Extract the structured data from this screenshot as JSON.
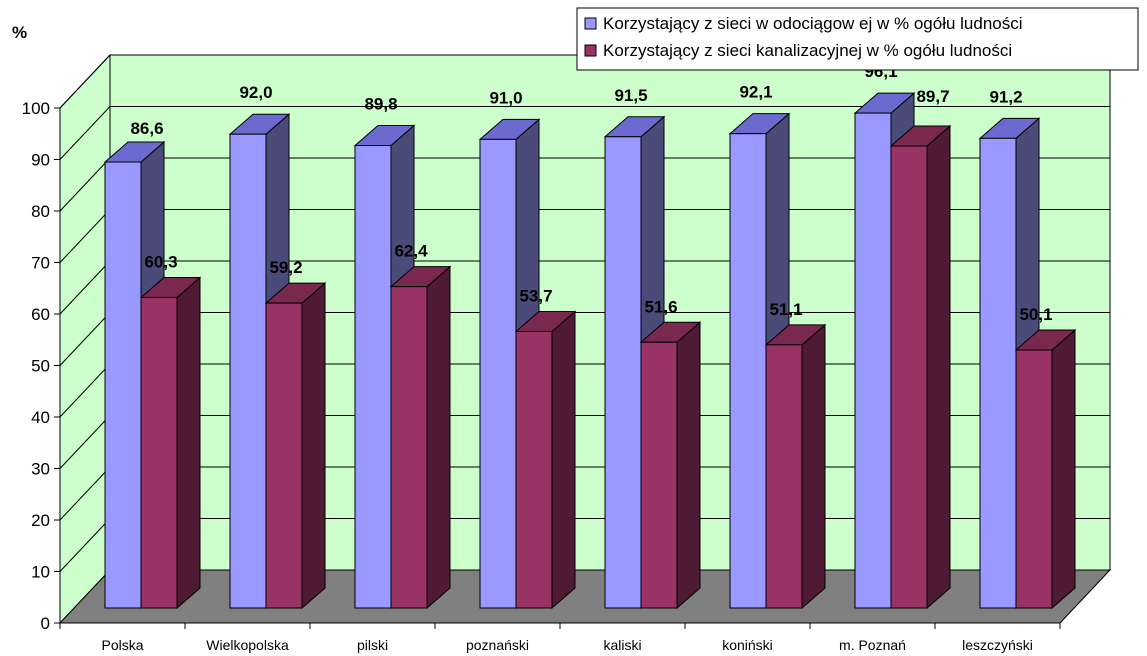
{
  "chart_data": {
    "type": "bar",
    "ylabel": "%",
    "ylim": [
      0,
      100
    ],
    "yticks": [
      0,
      10,
      20,
      30,
      40,
      50,
      60,
      70,
      80,
      90,
      100
    ],
    "categories": [
      "Polska",
      "Wielkopolska",
      "pilski",
      "poznański",
      "kaliski",
      "koniński",
      "m. Poznań",
      "leszczyński"
    ],
    "series": [
      {
        "name": "Korzystający z sieci w odociągow ej w % ogółu ludności",
        "values": [
          86.6,
          92.0,
          89.8,
          91.0,
          91.5,
          92.1,
          96.1,
          91.2
        ],
        "labels": [
          "86,6",
          "92,0",
          "89,8",
          "91,0",
          "91,5",
          "92,1",
          "96,1",
          "91,2"
        ],
        "color_front": "#9999ff",
        "color_top": "#6b6bcf",
        "color_side": "#4b4b7a"
      },
      {
        "name": "Korzystający z sieci kanalizacyjnej w % ogółu ludności",
        "values": [
          60.3,
          59.2,
          62.4,
          53.7,
          51.6,
          51.1,
          89.7,
          50.1
        ],
        "labels": [
          "60,3",
          "59,2",
          "62,4",
          "53,7",
          "51,6",
          "51,1",
          "89,7",
          "50,1"
        ],
        "color_front": "#993366",
        "color_top": "#7a2850",
        "color_side": "#4f1a34"
      }
    ],
    "grid": true,
    "legend_position": "top-right",
    "wall_color": "#ccffcc",
    "floor_color": "#808080"
  }
}
